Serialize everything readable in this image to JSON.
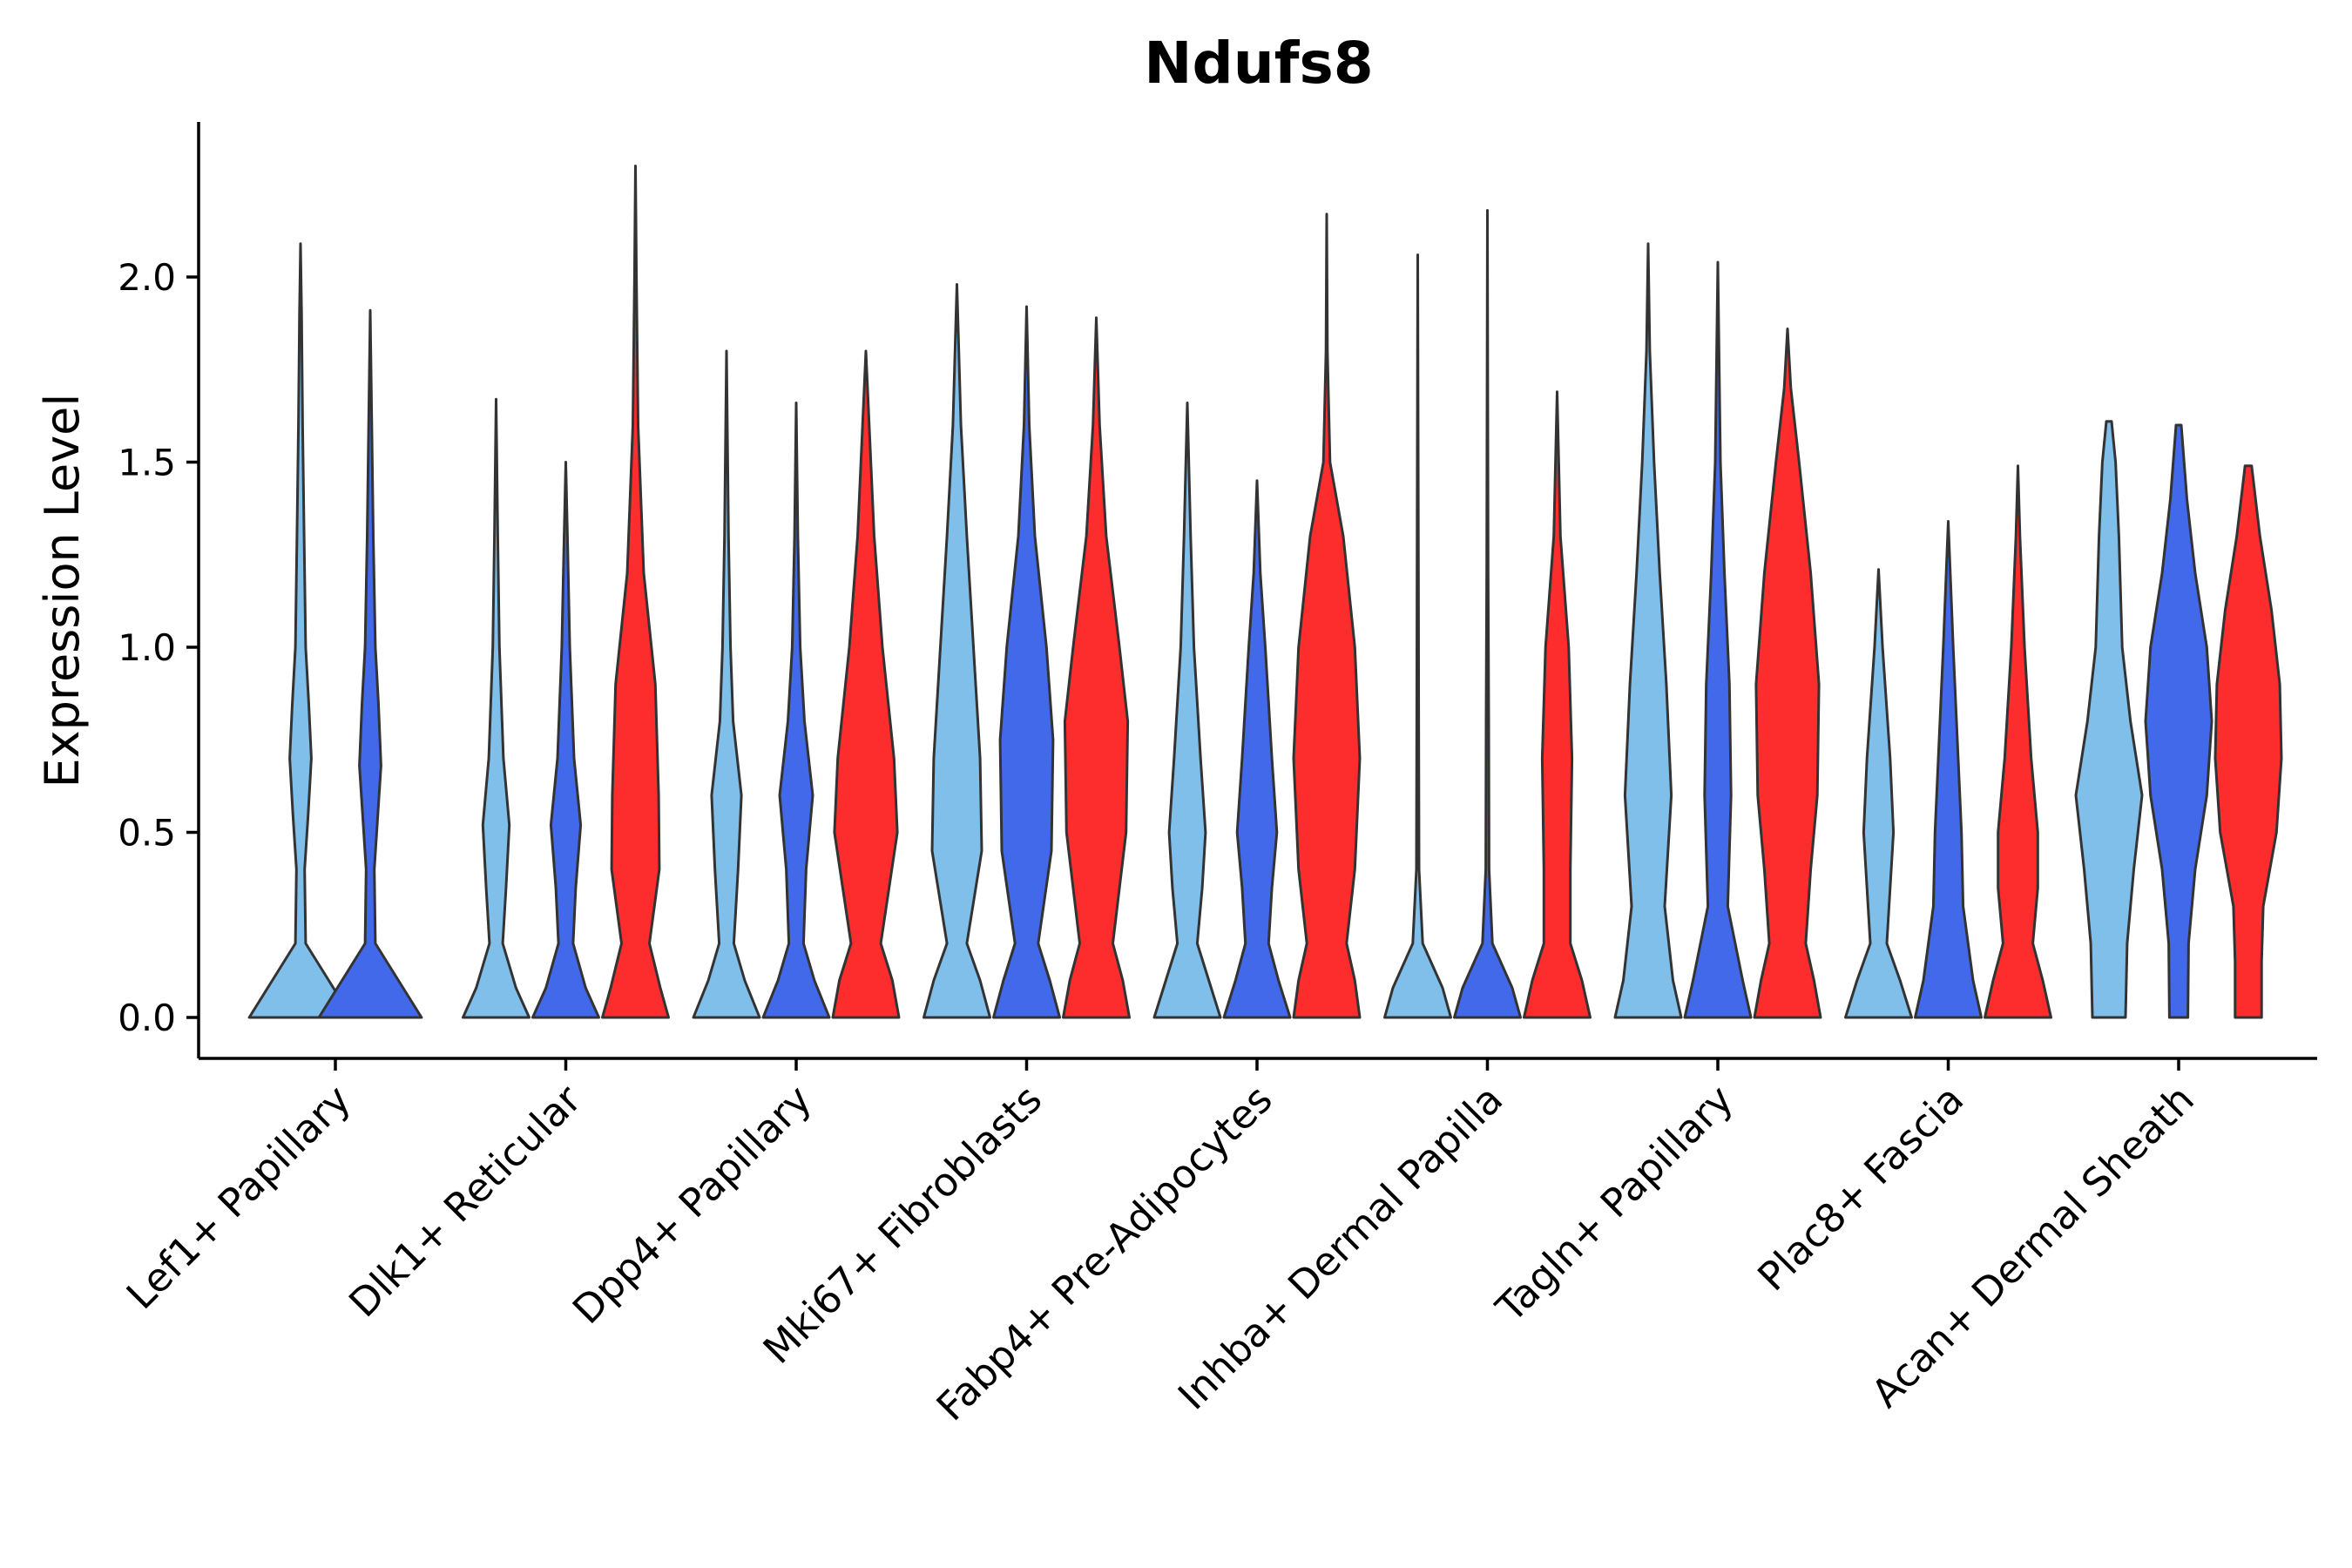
{
  "chart_data": {
    "type": "violin",
    "title": "Ndufs8",
    "xlabel": "",
    "ylabel": "Expression Level",
    "ylim": [
      -0.11,
      2.4
    ],
    "yticks": [
      "0.0",
      "0.5",
      "1.0",
      "1.5",
      "2.0"
    ],
    "ytick_values": [
      0,
      0.5,
      1.0,
      1.5,
      2.0
    ],
    "categories": [
      "Lef1+ Papillary",
      "Dlk1+ Reticular",
      "Dpp4+ Papillary",
      "Mki67+ Fibroblasts",
      "Fabp4+ Pre-Adipocytes",
      "Inhba+ Dermal Papilla",
      "Tagln+ Papillary",
      "Plac8+ Fascia",
      "Acan+ Dermal Sheath"
    ],
    "series_colors": [
      "#7fbfea",
      "#4169e9",
      "#fe2d2d"
    ],
    "violins": [
      {
        "category": "Lef1+ Papillary",
        "series": 0,
        "max": 2.09,
        "shape": [
          [
            0,
            1
          ],
          [
            0.1,
            0.55
          ],
          [
            0.2,
            0.1
          ],
          [
            0.4,
            0.08
          ],
          [
            0.55,
            0.15
          ],
          [
            0.7,
            0.21
          ],
          [
            0.85,
            0.16
          ],
          [
            1.0,
            0.1
          ],
          [
            1.3,
            0.07
          ],
          [
            1.6,
            0.04
          ],
          [
            1.9,
            0.02
          ],
          [
            2.09,
            0
          ]
        ]
      },
      {
        "category": "Lef1+ Papillary",
        "series": 1,
        "max": 1.91,
        "shape": [
          [
            0,
            1
          ],
          [
            0.1,
            0.55
          ],
          [
            0.2,
            0.1
          ],
          [
            0.4,
            0.08
          ],
          [
            0.55,
            0.15
          ],
          [
            0.68,
            0.21
          ],
          [
            0.85,
            0.16
          ],
          [
            1.0,
            0.1
          ],
          [
            1.3,
            0.06
          ],
          [
            1.6,
            0.03
          ],
          [
            1.91,
            0
          ]
        ]
      },
      {
        "category": "Dlk1+ Reticular",
        "series": 0,
        "max": 1.67,
        "shape": [
          [
            0,
            1
          ],
          [
            0.08,
            0.6
          ],
          [
            0.2,
            0.2
          ],
          [
            0.35,
            0.3
          ],
          [
            0.52,
            0.4
          ],
          [
            0.7,
            0.22
          ],
          [
            1.0,
            0.1
          ],
          [
            1.3,
            0.05
          ],
          [
            1.67,
            0
          ]
        ]
      },
      {
        "category": "Dlk1+ Reticular",
        "series": 1,
        "max": 1.5,
        "shape": [
          [
            0,
            1
          ],
          [
            0.08,
            0.6
          ],
          [
            0.2,
            0.22
          ],
          [
            0.35,
            0.3
          ],
          [
            0.52,
            0.45
          ],
          [
            0.7,
            0.25
          ],
          [
            1.0,
            0.12
          ],
          [
            1.3,
            0.05
          ],
          [
            1.5,
            0
          ]
        ]
      },
      {
        "category": "Dlk1+ Reticular",
        "series": 2,
        "max": 2.3,
        "shape": [
          [
            0,
            1
          ],
          [
            0.08,
            0.75
          ],
          [
            0.2,
            0.42
          ],
          [
            0.4,
            0.72
          ],
          [
            0.6,
            0.7
          ],
          [
            0.9,
            0.6
          ],
          [
            1.2,
            0.25
          ],
          [
            1.6,
            0.08
          ],
          [
            2.0,
            0.03
          ],
          [
            2.3,
            0
          ]
        ]
      },
      {
        "category": "Dpp4+ Papillary",
        "series": 0,
        "max": 1.8,
        "shape": [
          [
            0,
            1
          ],
          [
            0.1,
            0.55
          ],
          [
            0.2,
            0.22
          ],
          [
            0.4,
            0.35
          ],
          [
            0.6,
            0.45
          ],
          [
            0.8,
            0.2
          ],
          [
            1.0,
            0.12
          ],
          [
            1.3,
            0.06
          ],
          [
            1.8,
            0
          ]
        ]
      },
      {
        "category": "Dpp4+ Papillary",
        "series": 1,
        "max": 1.66,
        "shape": [
          [
            0,
            1
          ],
          [
            0.1,
            0.55
          ],
          [
            0.2,
            0.22
          ],
          [
            0.4,
            0.3
          ],
          [
            0.6,
            0.5
          ],
          [
            0.8,
            0.25
          ],
          [
            1.0,
            0.12
          ],
          [
            1.3,
            0.05
          ],
          [
            1.66,
            0
          ]
        ]
      },
      {
        "category": "Dpp4+ Papillary",
        "series": 2,
        "max": 1.8,
        "shape": [
          [
            0,
            1
          ],
          [
            0.1,
            0.8
          ],
          [
            0.2,
            0.45
          ],
          [
            0.35,
            0.7
          ],
          [
            0.5,
            0.95
          ],
          [
            0.7,
            0.85
          ],
          [
            1.0,
            0.5
          ],
          [
            1.3,
            0.25
          ],
          [
            1.6,
            0.1
          ],
          [
            1.8,
            0
          ]
        ]
      },
      {
        "category": "Mki67+ Fibroblasts",
        "series": 0,
        "max": 1.98,
        "shape": [
          [
            0,
            1
          ],
          [
            0.1,
            0.7
          ],
          [
            0.2,
            0.3
          ],
          [
            0.45,
            0.75
          ],
          [
            0.7,
            0.7
          ],
          [
            1.0,
            0.5
          ],
          [
            1.3,
            0.3
          ],
          [
            1.6,
            0.12
          ],
          [
            1.98,
            0
          ]
        ]
      },
      {
        "category": "Mki67+ Fibroblasts",
        "series": 1,
        "max": 1.92,
        "shape": [
          [
            0,
            1
          ],
          [
            0.1,
            0.7
          ],
          [
            0.2,
            0.35
          ],
          [
            0.45,
            0.75
          ],
          [
            0.75,
            0.8
          ],
          [
            1.0,
            0.6
          ],
          [
            1.3,
            0.25
          ],
          [
            1.6,
            0.08
          ],
          [
            1.92,
            0
          ]
        ]
      },
      {
        "category": "Mki67+ Fibroblasts",
        "series": 2,
        "max": 1.89,
        "shape": [
          [
            0,
            1
          ],
          [
            0.1,
            0.8
          ],
          [
            0.2,
            0.5
          ],
          [
            0.35,
            0.7
          ],
          [
            0.5,
            0.9
          ],
          [
            0.8,
            0.95
          ],
          [
            1.0,
            0.7
          ],
          [
            1.3,
            0.3
          ],
          [
            1.6,
            0.1
          ],
          [
            1.89,
            0
          ]
        ]
      },
      {
        "category": "Fabp4+ Pre-Adipocytes",
        "series": 0,
        "max": 1.66,
        "shape": [
          [
            0,
            1
          ],
          [
            0.1,
            0.65
          ],
          [
            0.2,
            0.3
          ],
          [
            0.35,
            0.45
          ],
          [
            0.5,
            0.55
          ],
          [
            0.7,
            0.4
          ],
          [
            1.0,
            0.2
          ],
          [
            1.3,
            0.1
          ],
          [
            1.66,
            0
          ]
        ]
      },
      {
        "category": "Fabp4+ Pre-Adipocytes",
        "series": 1,
        "max": 1.45,
        "shape": [
          [
            0,
            1
          ],
          [
            0.1,
            0.65
          ],
          [
            0.2,
            0.35
          ],
          [
            0.35,
            0.45
          ],
          [
            0.5,
            0.6
          ],
          [
            0.7,
            0.45
          ],
          [
            1.0,
            0.25
          ],
          [
            1.2,
            0.1
          ],
          [
            1.45,
            0
          ]
        ]
      },
      {
        "category": "Fabp4+ Pre-Adipocytes",
        "series": 2,
        "max": 2.17,
        "shape": [
          [
            0,
            1
          ],
          [
            0.1,
            0.85
          ],
          [
            0.2,
            0.6
          ],
          [
            0.4,
            0.85
          ],
          [
            0.7,
            1.0
          ],
          [
            1.0,
            0.85
          ],
          [
            1.3,
            0.5
          ],
          [
            1.5,
            0.1
          ],
          [
            1.8,
            0.02
          ],
          [
            2.17,
            0
          ]
        ]
      },
      {
        "category": "Inhba+ Dermal Papilla",
        "series": 0,
        "max": 2.06,
        "shape": [
          [
            0,
            1
          ],
          [
            0.08,
            0.75
          ],
          [
            0.2,
            0.15
          ],
          [
            0.4,
            0.04
          ],
          [
            0.8,
            0.03
          ],
          [
            1.2,
            0.02
          ],
          [
            2.06,
            0
          ]
        ]
      },
      {
        "category": "Inhba+ Dermal Papilla",
        "series": 1,
        "max": 2.18,
        "shape": [
          [
            0,
            1
          ],
          [
            0.08,
            0.75
          ],
          [
            0.2,
            0.15
          ],
          [
            0.4,
            0.05
          ],
          [
            0.8,
            0.04
          ],
          [
            1.2,
            0.02
          ],
          [
            2.18,
            0
          ]
        ]
      },
      {
        "category": "Inhba+ Dermal Papilla",
        "series": 2,
        "max": 1.69,
        "shape": [
          [
            0,
            1
          ],
          [
            0.1,
            0.75
          ],
          [
            0.2,
            0.4
          ],
          [
            0.4,
            0.4
          ],
          [
            0.7,
            0.45
          ],
          [
            1.0,
            0.35
          ],
          [
            1.3,
            0.1
          ],
          [
            1.69,
            0
          ]
        ]
      },
      {
        "category": "Tagln+ Papillary",
        "series": 0,
        "max": 2.09,
        "shape": [
          [
            0,
            1
          ],
          [
            0.1,
            0.75
          ],
          [
            0.3,
            0.5
          ],
          [
            0.6,
            0.7
          ],
          [
            0.9,
            0.55
          ],
          [
            1.2,
            0.35
          ],
          [
            1.5,
            0.18
          ],
          [
            1.8,
            0.05
          ],
          [
            2.09,
            0
          ]
        ]
      },
      {
        "category": "Tagln+ Papillary",
        "series": 1,
        "max": 2.04,
        "shape": [
          [
            0,
            1
          ],
          [
            0.1,
            0.75
          ],
          [
            0.3,
            0.3
          ],
          [
            0.6,
            0.4
          ],
          [
            0.9,
            0.35
          ],
          [
            1.2,
            0.2
          ],
          [
            1.5,
            0.08
          ],
          [
            2.04,
            0
          ]
        ]
      },
      {
        "category": "Tagln+ Papillary",
        "series": 2,
        "max": 1.86,
        "shape": [
          [
            0,
            1
          ],
          [
            0.1,
            0.8
          ],
          [
            0.2,
            0.55
          ],
          [
            0.4,
            0.7
          ],
          [
            0.6,
            0.9
          ],
          [
            0.9,
            0.95
          ],
          [
            1.2,
            0.7
          ],
          [
            1.5,
            0.35
          ],
          [
            1.7,
            0.1
          ],
          [
            1.86,
            0
          ]
        ]
      },
      {
        "category": "Plac8+ Fascia",
        "series": 0,
        "max": 1.21,
        "shape": [
          [
            0,
            1
          ],
          [
            0.1,
            0.65
          ],
          [
            0.2,
            0.25
          ],
          [
            0.35,
            0.35
          ],
          [
            0.5,
            0.45
          ],
          [
            0.7,
            0.35
          ],
          [
            1.0,
            0.12
          ],
          [
            1.21,
            0
          ]
        ]
      },
      {
        "category": "Plac8+ Fascia",
        "series": 1,
        "max": 1.34,
        "shape": [
          [
            0,
            1
          ],
          [
            0.1,
            0.75
          ],
          [
            0.3,
            0.45
          ],
          [
            0.5,
            0.4
          ],
          [
            0.7,
            0.3
          ],
          [
            1.0,
            0.15
          ],
          [
            1.34,
            0
          ]
        ]
      },
      {
        "category": "Plac8+ Fascia",
        "series": 2,
        "max": 1.49,
        "shape": [
          [
            0,
            1
          ],
          [
            0.1,
            0.75
          ],
          [
            0.2,
            0.45
          ],
          [
            0.35,
            0.6
          ],
          [
            0.5,
            0.6
          ],
          [
            0.7,
            0.4
          ],
          [
            1.0,
            0.2
          ],
          [
            1.3,
            0.06
          ],
          [
            1.49,
            0
          ]
        ]
      },
      {
        "category": "Acan+ Dermal Sheath",
        "series": 0,
        "max": 1.61,
        "shape": [
          [
            0,
            0.5
          ],
          [
            0.2,
            0.55
          ],
          [
            0.4,
            0.75
          ],
          [
            0.6,
            1.0
          ],
          [
            0.8,
            0.65
          ],
          [
            1.0,
            0.4
          ],
          [
            1.3,
            0.3
          ],
          [
            1.5,
            0.2
          ],
          [
            1.61,
            0.08
          ]
        ]
      },
      {
        "category": "Acan+ Dermal Sheath",
        "series": 1,
        "max": 1.6,
        "shape": [
          [
            0,
            0.28
          ],
          [
            0.2,
            0.3
          ],
          [
            0.4,
            0.5
          ],
          [
            0.6,
            0.85
          ],
          [
            0.8,
            1.0
          ],
          [
            1.0,
            0.85
          ],
          [
            1.2,
            0.5
          ],
          [
            1.4,
            0.25
          ],
          [
            1.6,
            0.08
          ]
        ]
      },
      {
        "category": "Acan+ Dermal Sheath",
        "series": 2,
        "max": 1.49,
        "shape": [
          [
            0,
            0.4
          ],
          [
            0.15,
            0.4
          ],
          [
            0.3,
            0.45
          ],
          [
            0.5,
            0.85
          ],
          [
            0.7,
            1.0
          ],
          [
            0.9,
            0.95
          ],
          [
            1.1,
            0.7
          ],
          [
            1.3,
            0.35
          ],
          [
            1.49,
            0.1
          ]
        ]
      }
    ]
  }
}
